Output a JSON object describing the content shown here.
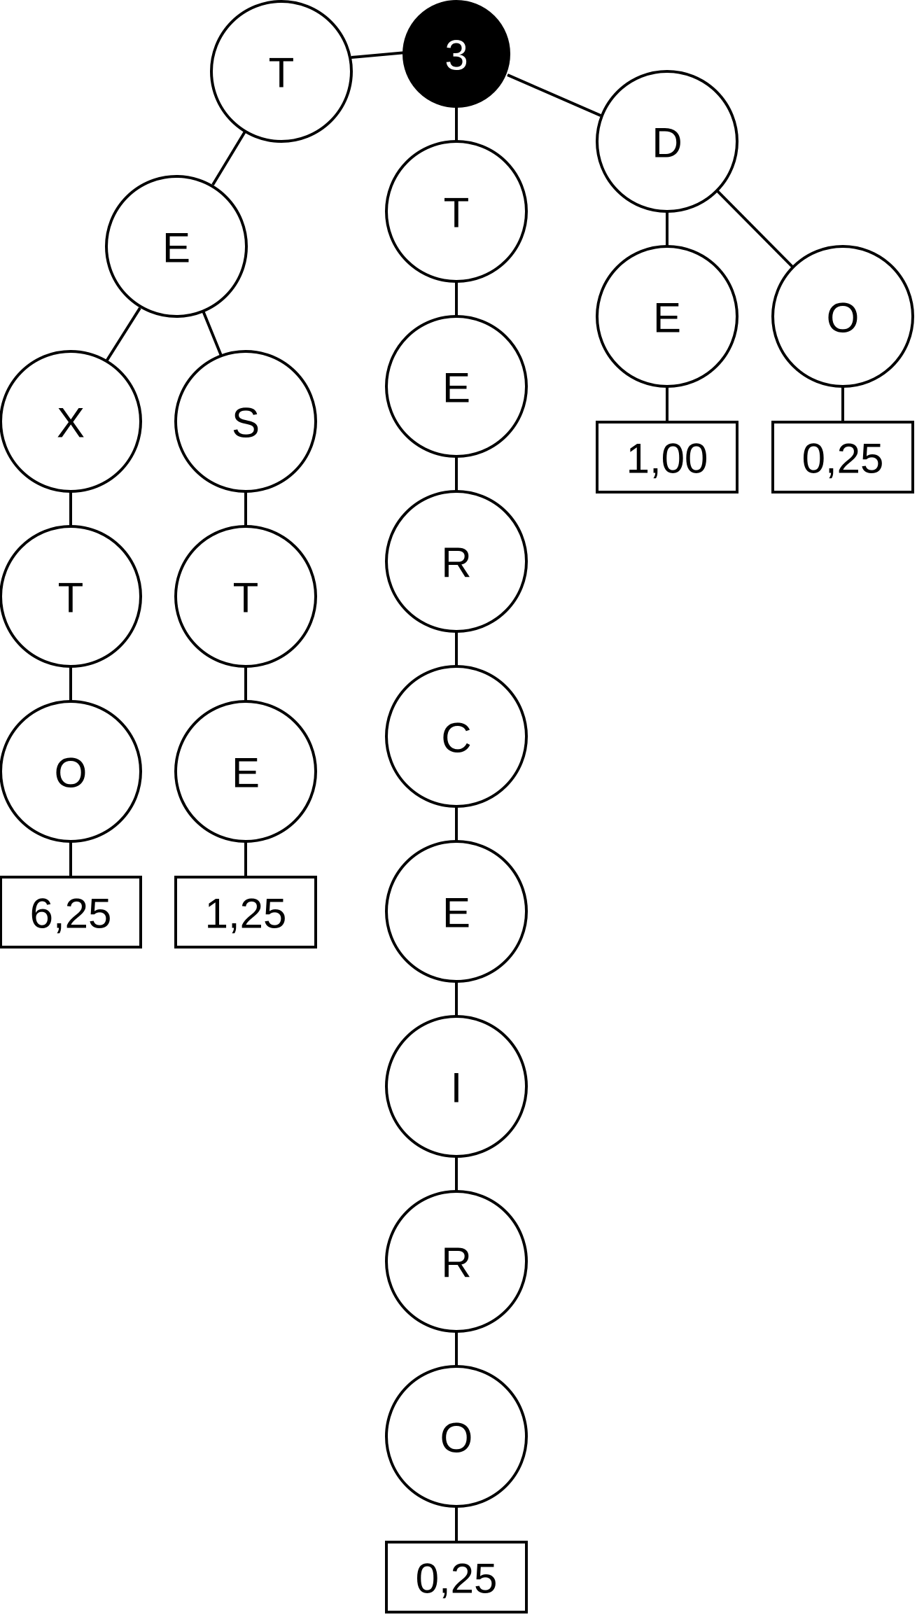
{
  "trie": {
    "root": {
      "label": "3"
    },
    "branch_t": {
      "label": "T"
    },
    "branch_t_e": {
      "label": "E"
    },
    "branch_t_e_x": {
      "label": "X"
    },
    "branch_t_e_x_t": {
      "label": "T"
    },
    "branch_t_e_x_t_o": {
      "label": "O"
    },
    "value_texto": {
      "label": "6,25"
    },
    "branch_t_e_s": {
      "label": "S"
    },
    "branch_t_e_s_t": {
      "label": "T"
    },
    "branch_t_e_s_t_e": {
      "label": "E"
    },
    "value_teste": {
      "label": "1,25"
    },
    "chain": [
      {
        "label": "T"
      },
      {
        "label": "E"
      },
      {
        "label": "R"
      },
      {
        "label": "C"
      },
      {
        "label": "E"
      },
      {
        "label": "I"
      },
      {
        "label": "R"
      },
      {
        "label": "O"
      }
    ],
    "value_terceiro": {
      "label": "0,25"
    },
    "branch_d": {
      "label": "D"
    },
    "branch_d_e": {
      "label": "E"
    },
    "value_de": {
      "label": "1,00"
    },
    "branch_d_o": {
      "label": "O"
    },
    "value_do": {
      "label": "0,25"
    }
  }
}
